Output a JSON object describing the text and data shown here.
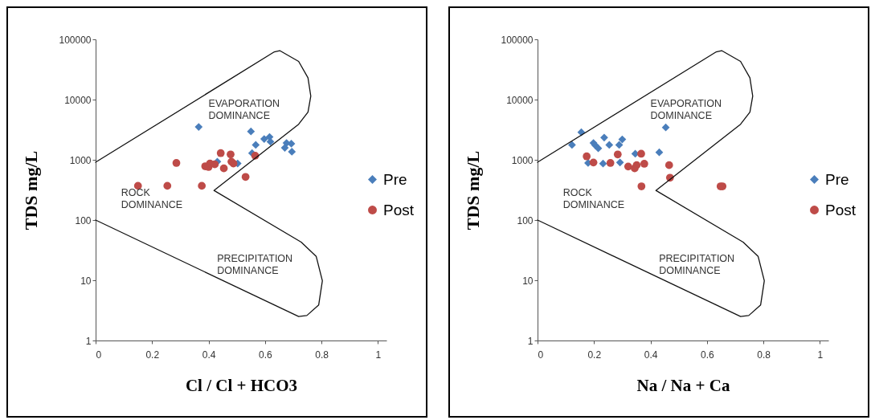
{
  "chart_data": [
    {
      "type": "scatter",
      "xlabel": "Cl / Cl + HCO3",
      "ylabel": "TDS mg/L",
      "log": "y",
      "legend": "right",
      "xlim": [
        0,
        1.03
      ],
      "xticks": [
        0,
        0.2,
        0.4,
        0.6,
        0.8,
        1
      ],
      "ylim": [
        1,
        100000
      ],
      "yticks": [
        1,
        10,
        100,
        1000,
        10000,
        100000
      ],
      "annotations": [
        "EVAPORATION DOMINANCE",
        "ROCK DOMINANCE",
        "PRECIPITATION DOMINANCE"
      ],
      "series": [
        {
          "name": "Pre",
          "color": "#4a7ebb",
          "marker": "diamond",
          "x": [
            0.365,
            0.55,
            0.567,
            0.597,
            0.616,
            0.619,
            0.554,
            0.676,
            0.693,
            0.67,
            0.695,
            0.431,
            0.503
          ],
          "values": [
            3520,
            2960,
            1770,
            2220,
            2390,
            2000,
            1290,
            1900,
            1850,
            1580,
            1360,
            930,
            870
          ]
        },
        {
          "name": "Post",
          "color": "#be4b48",
          "marker": "circle",
          "x": [
            0.15,
            0.254,
            0.376,
            0.286,
            0.388,
            0.4,
            0.405,
            0.422,
            0.443,
            0.454,
            0.478,
            0.481,
            0.488,
            0.531,
            0.565
          ],
          "values": [
            370,
            370,
            370,
            885,
            782,
            759,
            867,
            840,
            1290,
            721,
            1230,
            930,
            867,
            520,
            1170
          ]
        },
        {
          "type": "line",
          "color": "#111111",
          "marker": "none",
          "line_style": "solid",
          "x": [
            0,
            0.633,
            0.652,
            0.719,
            0.752,
            0.762,
            0.752,
            0.719,
            0.419,
            0.728,
            0.781,
            0.803,
            0.79,
            0.748,
            0.719,
            0
          ],
          "values": [
            910,
            62000,
            65000,
            43000,
            23000,
            11400,
            6200,
            3900,
            310,
            43,
            25,
            9.8,
            3.9,
            2.6,
            2.5,
            100
          ]
        }
      ]
    },
    {
      "type": "scatter",
      "xlabel": "Na / Na + Ca",
      "ylabel": "TDS mg/L",
      "log": "y",
      "legend": "right",
      "xlim": [
        0,
        1.03
      ],
      "xticks": [
        0,
        0.2,
        0.4,
        0.6,
        0.8,
        1
      ],
      "ylim": [
        1,
        100000
      ],
      "yticks": [
        1,
        10,
        100,
        1000,
        10000,
        100000
      ],
      "annotations": [
        "EVAPORATION DOMINANCE",
        "ROCK DOMINANCE",
        "PRECIPITATION DOMINANCE"
      ],
      "series": [
        {
          "name": "Pre",
          "color": "#4a7ebb",
          "marker": "diamond",
          "x": [
            0.122,
            0.155,
            0.198,
            0.204,
            0.215,
            0.236,
            0.254,
            0.289,
            0.3,
            0.346,
            0.431,
            0.454,
            0.179,
            0.232,
            0.292
          ],
          "values": [
            1770,
            2870,
            1900,
            1750,
            1550,
            2340,
            1770,
            1770,
            2180,
            1260,
            1330,
            3450,
            885,
            867,
            903
          ]
        },
        {
          "name": "Post",
          "color": "#be4b48",
          "marker": "circle",
          "x": [
            0.174,
            0.198,
            0.258,
            0.284,
            0.321,
            0.344,
            0.351,
            0.378,
            0.367,
            0.368,
            0.466,
            0.469,
            0.648,
            0.655
          ],
          "values": [
            1140,
            903,
            885,
            1230,
            774,
            721,
            815,
            858,
            1260,
            363,
            815,
            504,
            363,
            363
          ]
        },
        {
          "type": "line",
          "color": "#111111",
          "marker": "none",
          "line_style": "solid",
          "x": [
            0,
            0.633,
            0.652,
            0.719,
            0.752,
            0.762,
            0.752,
            0.719,
            0.419,
            0.728,
            0.781,
            0.803,
            0.79,
            0.748,
            0.719,
            0
          ],
          "values": [
            910,
            62000,
            65000,
            43000,
            23000,
            11400,
            6200,
            3900,
            310,
            43,
            25,
            9.8,
            3.9,
            2.6,
            2.5,
            100
          ]
        }
      ]
    }
  ]
}
